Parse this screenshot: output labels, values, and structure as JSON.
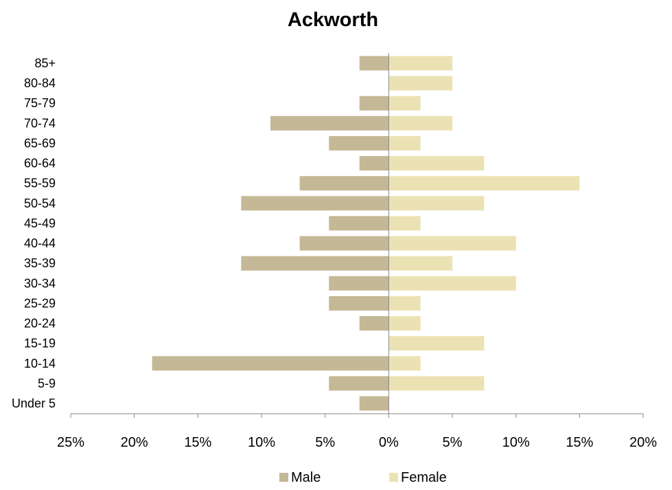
{
  "chart_data": {
    "type": "bar",
    "orientation": "horizontal",
    "title": "Ackworth",
    "categories": [
      "Under 5",
      "5-9",
      "10-14",
      "15-19",
      "20-24",
      "25-29",
      "30-34",
      "35-39",
      "40-44",
      "45-49",
      "50-54",
      "55-59",
      "60-64",
      "65-69",
      "70-74",
      "75-79",
      "80-84",
      "85+"
    ],
    "series": [
      {
        "name": "Male",
        "color": "#c4b896",
        "values": [
          2.3,
          4.7,
          18.6,
          0,
          2.3,
          4.7,
          4.7,
          11.6,
          7.0,
          4.7,
          11.6,
          7.0,
          2.3,
          4.7,
          9.3,
          2.3,
          0,
          2.3
        ]
      },
      {
        "name": "Female",
        "color": "#ebe2b4",
        "values": [
          0,
          7.5,
          2.5,
          7.5,
          2.5,
          2.5,
          10.0,
          5.0,
          10.0,
          2.5,
          7.5,
          15.0,
          7.5,
          2.5,
          5.0,
          2.5,
          5.0,
          5.0
        ]
      }
    ],
    "x_ticks": [
      "25%",
      "20%",
      "15%",
      "10%",
      "5%",
      "0%",
      "5%",
      "10%",
      "15%",
      "20%"
    ],
    "xlim": [
      -25,
      20
    ],
    "xlabel": "",
    "ylabel": "",
    "grid": false,
    "legend": "bottom-center"
  }
}
